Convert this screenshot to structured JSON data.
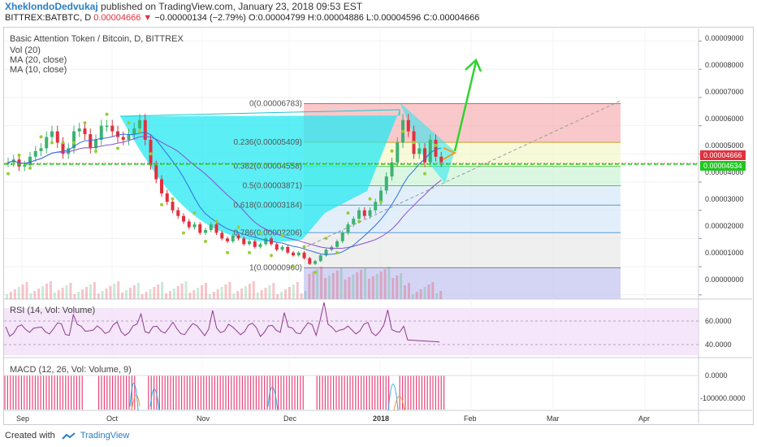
{
  "header": {
    "author": "XheklondoDedvukaj",
    "published": "published on TradingView.com, January 23, 2018 09:53 EST",
    "symbol": "BITTREX:BATBTC, D",
    "last": "0.00004666",
    "change": "−0.00000134 (−2.79%)",
    "ohlc": "O:0.00004799 H:0.00004886 L:0.00004596 C:0.00004666"
  },
  "legend": {
    "title": "Basic Attention Token / Bitcoin, D, BITTREX",
    "vol": "Vol (20)",
    "ma20": "MA (20, close)",
    "ma10": "MA (10, close)"
  },
  "colors": {
    "up": "#3cb371",
    "down": "#e0303e",
    "cup": "#26e8f2",
    "fib_red": "#f3a3a8",
    "fib_yellow": "#f0f7c0",
    "fib_green": "#c3f2cf",
    "fib_blue": "#cfe4f7",
    "fib_grey": "#e4e4e4",
    "fib_lav": "#c6c6f2",
    "rsi_bg": "#f1dcf7",
    "macd": "#e6447a",
    "level": "#1ed61e"
  },
  "chart_data": [
    {
      "type": "candlestick",
      "title": "Basic Attention Token / Bitcoin, D, BITTREX",
      "x_ticks": [
        "Sep",
        "Oct",
        "Nov",
        "Dec",
        "2018",
        "Feb",
        "Mar",
        "Apr"
      ],
      "y_ticks": [
        9e-05,
        8e-05,
        7e-05,
        6e-05,
        5e-05,
        4e-05,
        3e-05,
        2e-05,
        1e-05,
        0.0
      ],
      "y_tick_labels": [
        "0.00009000",
        "0.00008000",
        "0.00007000",
        "0.00006000",
        "0.00005000",
        "0.00004000",
        "0.00003000",
        "0.00002000",
        "0.00001000",
        "0.00000000"
      ],
      "ylim": [
        -1.5e-06,
        9.45e-05
      ],
      "last_price": 4.666e-05,
      "last_price_label": "0.00004666",
      "support_level": 4.634e-05,
      "support_label": "0.00004634",
      "closes": [
        4.7e-05,
        4.8e-05,
        4.55e-05,
        4.6e-05,
        4.9e-05,
        5.1e-05,
        5.2e-05,
        5.6e-05,
        5.8e-05,
        5.4e-05,
        5e-05,
        5.2e-05,
        5.8e-05,
        5.9e-05,
        5.7e-05,
        5.2e-05,
        5.5e-05,
        6e-05,
        6e-05,
        5.8e-05,
        5.6e-05,
        5.5e-05,
        5.7e-05,
        5.9e-05,
        6.2e-05,
        5.5e-05,
        4.6e-05,
        4.1e-05,
        3.6e-05,
        3.3e-05,
        3e-05,
        2.8e-05,
        2.6e-05,
        2.4e-05,
        2.5e-05,
        2.2e-05,
        2.3e-05,
        2.5e-05,
        2.2e-05,
        2e-05,
        1.9e-05,
        2.1e-05,
        2e-05,
        1.8e-05,
        1.9e-05,
        1.7e-05,
        1.8e-05,
        2e-05,
        1.8e-05,
        1.6e-05,
        1.7e-05,
        1.5e-05,
        1.4e-05,
        1.5e-05,
        1.3e-05,
        1.1e-05,
        1.2e-05,
        1.4e-05,
        1.6e-05,
        1.7e-05,
        1.9e-05,
        2.2e-05,
        2.5e-05,
        2.7e-05,
        3e-05,
        2.8e-05,
        3e-05,
        3.3e-05,
        3.7e-05,
        4.2e-05,
        4.7e-05,
        5.4e-05,
        6.2e-05,
        5.8e-05,
        5e-05,
        5.2e-05,
        4.7e-05,
        5.5e-05,
        4.9e-05,
        4.7e-05
      ],
      "fib_levels": [
        {
          "ratio": "0",
          "price": 6.783e-05,
          "label": "0(0.00006783)"
        },
        {
          "ratio": "0.236",
          "price": 5.409e-05,
          "label": "0.236(0.00005409)"
        },
        {
          "ratio": "0.382",
          "price": 4.558e-05,
          "label": "0.382(0.00004558)"
        },
        {
          "ratio": "0.5",
          "price": 3.871e-05,
          "label": "0.5(0.00003871)"
        },
        {
          "ratio": "0.618",
          "price": 3.184e-05,
          "label": "0.618(0.00003184)"
        },
        {
          "ratio": "0.786",
          "price": 2.206e-05,
          "label": "0.786(0.00002206)"
        },
        {
          "ratio": "1",
          "price": 9.6e-06,
          "label": "1(0.00000960)"
        }
      ]
    },
    {
      "type": "line",
      "title": "RSI (14, Vol: Volume)",
      "y_ticks": [
        60,
        40
      ],
      "y_tick_labels": [
        "60.0000",
        "40.0000"
      ],
      "ylim": [
        30,
        70
      ]
    },
    {
      "type": "bar",
      "title": "MACD (12, 26, Vol: Volume, 9)",
      "y_ticks": [
        0,
        -100000
      ],
      "y_tick_labels": [
        "0.0000",
        "-100000.0000"
      ]
    }
  ],
  "footer": {
    "created_with": "Created with",
    "brand": "TradingView"
  }
}
